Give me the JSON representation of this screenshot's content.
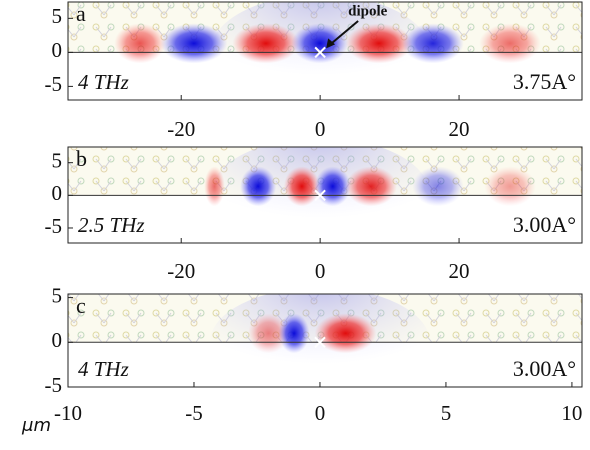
{
  "x_axis_label": "μm",
  "chart_data": [
    {
      "type": "field-map",
      "label": "a",
      "frequency": "4 THz",
      "distance": "3.75A°",
      "annotation": "dipole",
      "xlim": [
        -36.3,
        37.7
      ],
      "xticks": [
        -20,
        0,
        20
      ],
      "ylim": [
        -7,
        7.4
      ],
      "yticks": [
        5,
        0,
        -5
      ]
    },
    {
      "type": "field-map",
      "label": "b",
      "frequency": "2.5 THz",
      "distance": "3.00A°",
      "xlim": [
        -36.3,
        37.7
      ],
      "xticks": [
        -20,
        0,
        20
      ],
      "ylim": [
        -7.3,
        7.4
      ],
      "yticks": [
        5,
        0,
        -5
      ]
    },
    {
      "type": "field-map",
      "label": "c",
      "frequency": "4 THz",
      "distance": "3.00A°",
      "xlim": [
        -10,
        10.4
      ],
      "xticks": [
        -10,
        -5,
        0,
        5,
        10
      ],
      "ylim": [
        -5,
        5.4
      ],
      "yticks": [
        5,
        0,
        -5
      ]
    }
  ]
}
